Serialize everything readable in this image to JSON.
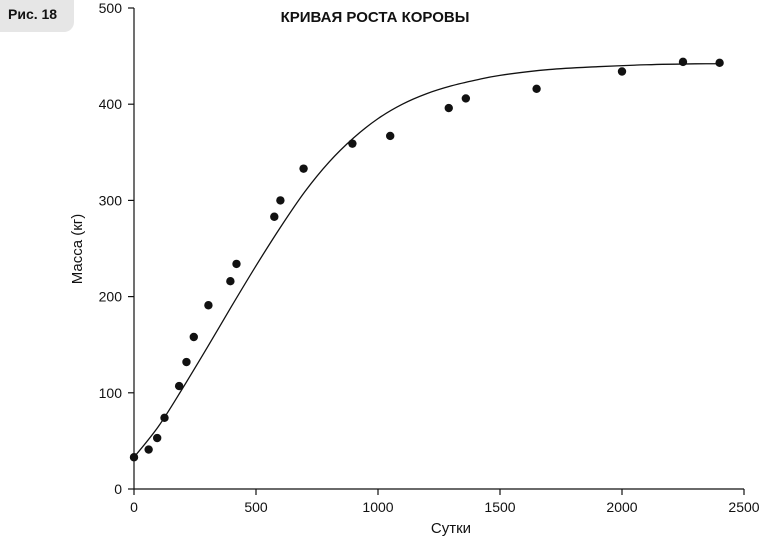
{
  "figure_label": "Рис. 18",
  "chart_data": {
    "type": "scatter",
    "title": "КРИВАЯ РОСТА КОРОВЫ",
    "xlabel": "Сутки",
    "ylabel": "Масса (кг)",
    "xlim": [
      0,
      2500
    ],
    "ylim": [
      0,
      500
    ],
    "xticks": [
      0,
      500,
      1000,
      1500,
      2000,
      2500
    ],
    "yticks": [
      0,
      100,
      200,
      300,
      400,
      500
    ],
    "grid": false,
    "points": [
      {
        "x": 0,
        "y": 33
      },
      {
        "x": 60,
        "y": 41
      },
      {
        "x": 95,
        "y": 53
      },
      {
        "x": 125,
        "y": 74
      },
      {
        "x": 185,
        "y": 107
      },
      {
        "x": 215,
        "y": 132
      },
      {
        "x": 245,
        "y": 158
      },
      {
        "x": 305,
        "y": 191
      },
      {
        "x": 395,
        "y": 216
      },
      {
        "x": 420,
        "y": 234
      },
      {
        "x": 575,
        "y": 283
      },
      {
        "x": 600,
        "y": 300
      },
      {
        "x": 695,
        "y": 333
      },
      {
        "x": 895,
        "y": 359
      },
      {
        "x": 1050,
        "y": 367
      },
      {
        "x": 1290,
        "y": 396
      },
      {
        "x": 1360,
        "y": 406
      },
      {
        "x": 1650,
        "y": 416
      },
      {
        "x": 2000,
        "y": 434
      },
      {
        "x": 2250,
        "y": 444
      },
      {
        "x": 2400,
        "y": 443
      }
    ],
    "fit_curve": {
      "x": [
        0,
        100,
        200,
        300,
        400,
        500,
        600,
        700,
        800,
        900,
        1000,
        1100,
        1200,
        1300,
        1400,
        1500,
        1700,
        1900,
        2100,
        2300,
        2400
      ],
      "y": [
        33,
        65,
        105,
        147,
        190,
        232,
        272,
        309,
        340,
        365,
        385,
        400,
        411,
        419,
        425,
        430,
        436,
        439,
        441,
        442,
        442
      ]
    }
  }
}
